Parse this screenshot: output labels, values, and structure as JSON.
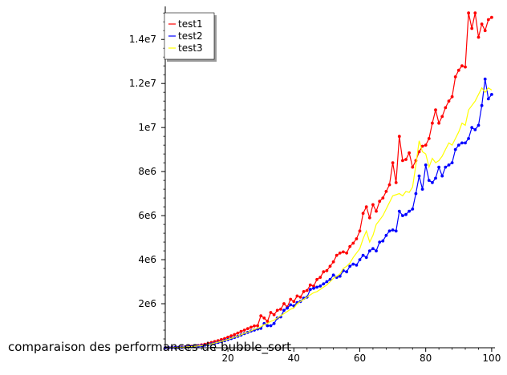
{
  "chart_data": {
    "type": "line",
    "caption": "comparaison des performances de bubble_sort",
    "xlabel": "",
    "ylabel": "",
    "xlim": [
      1,
      101
    ],
    "ylim": [
      0,
      15500000
    ],
    "x_ticks": [
      20,
      40,
      60,
      80,
      100
    ],
    "x_tick_labels": [
      "20",
      "40",
      "60",
      "80",
      "100"
    ],
    "y_ticks": [
      2000000,
      4000000,
      6000000,
      8000000,
      10000000,
      12000000,
      14000000
    ],
    "y_tick_labels": [
      "2e6",
      "4e6",
      "6e6",
      "8e6",
      "1e7",
      "1.2e7",
      "1.4e7"
    ],
    "legend_position": "top-left",
    "grid": false,
    "series": [
      {
        "name": "test1",
        "color": "#ff0000",
        "markers": true,
        "x": [
          1,
          2,
          3,
          4,
          5,
          6,
          7,
          8,
          9,
          10,
          11,
          12,
          13,
          14,
          15,
          16,
          17,
          18,
          19,
          20,
          21,
          22,
          23,
          24,
          25,
          26,
          27,
          28,
          29,
          30,
          31,
          32,
          33,
          34,
          35,
          36,
          37,
          38,
          39,
          40,
          41,
          42,
          43,
          44,
          45,
          46,
          47,
          48,
          49,
          50,
          51,
          52,
          53,
          54,
          55,
          56,
          57,
          58,
          59,
          60,
          61,
          62,
          63,
          64,
          65,
          66,
          67,
          68,
          69,
          70,
          71,
          72,
          73,
          74,
          75,
          76,
          77,
          78,
          79,
          80,
          81,
          82,
          83,
          84,
          85,
          86,
          87,
          88,
          89,
          90,
          91,
          92,
          93,
          94,
          95,
          96,
          97,
          98,
          99,
          100
        ],
        "y": [
          0,
          5000,
          10000,
          15000,
          20000,
          30000,
          40000,
          55000,
          70000,
          85000,
          100000,
          130000,
          160000,
          200000,
          240000,
          280000,
          320000,
          370000,
          420000,
          480000,
          540000,
          600000,
          670000,
          740000,
          800000,
          870000,
          930000,
          990000,
          1000000,
          1450000,
          1350000,
          1200000,
          1600000,
          1500000,
          1700000,
          1750000,
          2000000,
          1850000,
          2200000,
          2100000,
          2350000,
          2300000,
          2550000,
          2600000,
          2850000,
          2800000,
          3100000,
          3200000,
          3450000,
          3500000,
          3700000,
          3900000,
          4200000,
          4300000,
          4350000,
          4300000,
          4600000,
          4750000,
          4950000,
          5300000,
          6100000,
          6400000,
          5900000,
          6500000,
          6200000,
          6650000,
          6800000,
          7100000,
          7400000,
          8400000,
          7500000,
          9600000,
          8500000,
          8550000,
          8850000,
          8200000,
          8500000,
          8900000,
          9150000,
          9200000,
          9500000,
          10200000,
          10800000,
          10200000,
          10500000,
          10900000,
          11200000,
          11400000,
          12300000,
          12600000,
          12800000,
          12750000,
          15200000,
          14500000,
          15200000,
          14100000,
          14700000,
          14400000,
          14900000,
          15000000
        ]
      },
      {
        "name": "test2",
        "color": "#0000ff",
        "markers": true,
        "x": [
          1,
          2,
          3,
          4,
          5,
          6,
          7,
          8,
          9,
          10,
          11,
          12,
          13,
          14,
          15,
          16,
          17,
          18,
          19,
          20,
          21,
          22,
          23,
          24,
          25,
          26,
          27,
          28,
          29,
          30,
          31,
          32,
          33,
          34,
          35,
          36,
          37,
          38,
          39,
          40,
          41,
          42,
          43,
          44,
          45,
          46,
          47,
          48,
          49,
          50,
          51,
          52,
          53,
          54,
          55,
          56,
          57,
          58,
          59,
          60,
          61,
          62,
          63,
          64,
          65,
          66,
          67,
          68,
          69,
          70,
          71,
          72,
          73,
          74,
          75,
          76,
          77,
          78,
          79,
          80,
          81,
          82,
          83,
          84,
          85,
          86,
          87,
          88,
          89,
          90,
          91,
          92,
          93,
          94,
          95,
          96,
          97,
          98,
          99,
          100
        ],
        "y": [
          0,
          4000,
          8000,
          12000,
          16000,
          22000,
          30000,
          40000,
          50000,
          60000,
          75000,
          95000,
          115000,
          140000,
          170000,
          200000,
          240000,
          280000,
          320000,
          370000,
          420000,
          470000,
          520000,
          580000,
          640000,
          700000,
          760000,
          800000,
          850000,
          880000,
          1100000,
          1000000,
          1000000,
          1100000,
          1350000,
          1400000,
          1700000,
          1800000,
          1950000,
          1900000,
          2050000,
          2100000,
          2250000,
          2300000,
          2650000,
          2700000,
          2750000,
          2800000,
          2900000,
          3000000,
          3100000,
          3300000,
          3200000,
          3250000,
          3500000,
          3450000,
          3700000,
          3800000,
          3750000,
          4000000,
          4200000,
          4100000,
          4400000,
          4500000,
          4400000,
          4800000,
          4850000,
          5100000,
          5300000,
          5350000,
          5300000,
          6200000,
          6000000,
          6050000,
          6200000,
          6300000,
          7000000,
          7800000,
          7200000,
          8300000,
          7600000,
          7500000,
          7700000,
          8200000,
          7800000,
          8200000,
          8300000,
          8400000,
          9000000,
          9200000,
          9300000,
          9300000,
          9500000,
          10000000,
          9900000,
          10100000,
          11000000,
          12200000,
          11300000,
          11500000
        ]
      },
      {
        "name": "test3",
        "color": "#ffff00",
        "markers": false,
        "x": [
          1,
          2,
          3,
          4,
          5,
          6,
          7,
          8,
          9,
          10,
          11,
          12,
          13,
          14,
          15,
          16,
          17,
          18,
          19,
          20,
          21,
          22,
          23,
          24,
          25,
          26,
          27,
          28,
          29,
          30,
          31,
          32,
          33,
          34,
          35,
          36,
          37,
          38,
          39,
          40,
          41,
          42,
          43,
          44,
          45,
          46,
          47,
          48,
          49,
          50,
          51,
          52,
          53,
          54,
          55,
          56,
          57,
          58,
          59,
          60,
          61,
          62,
          63,
          64,
          65,
          66,
          67,
          68,
          69,
          70,
          71,
          72,
          73,
          74,
          75,
          76,
          77,
          78,
          79,
          80,
          81,
          82,
          83,
          84,
          85,
          86,
          87,
          88,
          89,
          90,
          91,
          92,
          93,
          94,
          95,
          96,
          97,
          98,
          99,
          100
        ],
        "y": [
          0,
          4500,
          9000,
          13500,
          18000,
          25000,
          33000,
          44000,
          55000,
          68000,
          82000,
          100000,
          120000,
          145000,
          175000,
          210000,
          250000,
          290000,
          330000,
          380000,
          430000,
          480000,
          530000,
          590000,
          650000,
          710000,
          770000,
          830000,
          880000,
          950000,
          1050000,
          1100000,
          1200000,
          1250000,
          1350000,
          1450000,
          1550000,
          1650000,
          1750000,
          1800000,
          2000000,
          2100000,
          2200000,
          2300000,
          2400000,
          2500000,
          2550000,
          2650000,
          2750000,
          2850000,
          3000000,
          3150000,
          3250000,
          3350000,
          3600000,
          3700000,
          3850000,
          4100000,
          4300000,
          4500000,
          4950000,
          5300000,
          4800000,
          5100000,
          5600000,
          5800000,
          6000000,
          6300000,
          6600000,
          6900000,
          6950000,
          7000000,
          6900000,
          7100000,
          7050000,
          7300000,
          8300000,
          9400000,
          8900000,
          8800000,
          8200000,
          8600000,
          8400000,
          8500000,
          8700000,
          9000000,
          9300000,
          9200000,
          9500000,
          9800000,
          10200000,
          10100000,
          10800000,
          11000000,
          11200000,
          11500000,
          11800000,
          11600000,
          11800000,
          11700000
        ]
      }
    ]
  }
}
